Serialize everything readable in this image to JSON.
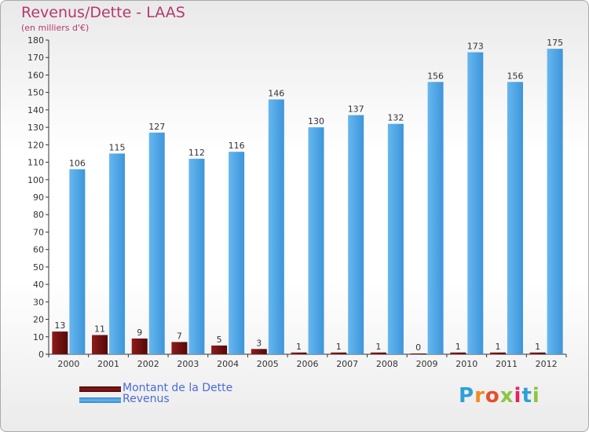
{
  "chart_data": {
    "type": "bar",
    "title": "Revenus/Dette - LAAS",
    "subtitle": "(en milliers d'€)",
    "categories": [
      "2000",
      "2001",
      "2002",
      "2003",
      "2004",
      "2005",
      "2006",
      "2007",
      "2008",
      "2009",
      "2010",
      "2011",
      "2012"
    ],
    "series": [
      {
        "name": "Montant de la Dette",
        "values": [
          13,
          11,
          9,
          7,
          5,
          3,
          1,
          1,
          1,
          0,
          1,
          1,
          1
        ],
        "color": "#6e0d0d"
      },
      {
        "name": "Revenus",
        "values": [
          106,
          115,
          127,
          112,
          116,
          146,
          130,
          137,
          132,
          156,
          173,
          156,
          175
        ],
        "color": "#4ea6e6"
      }
    ],
    "ylim": [
      0,
      180
    ],
    "ytick_step": 10,
    "grid": false,
    "legend_position": "bottom-left"
  },
  "brand": {
    "logo_text": "Proxiti"
  }
}
